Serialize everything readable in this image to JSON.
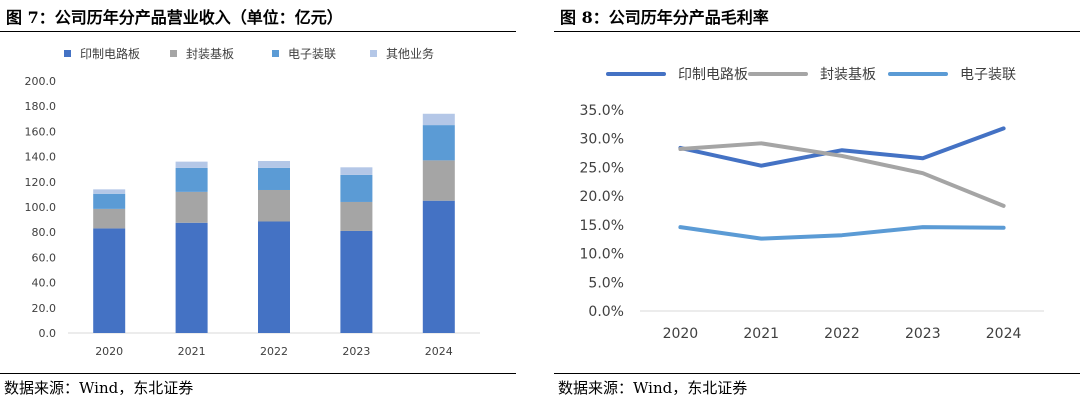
{
  "figures": [
    {
      "title": "图 7：公司历年分产品营业收入（单位：亿元）",
      "source": "数据来源：Wind，东北证券"
    },
    {
      "title": "图 8：公司历年分产品毛利率",
      "source": "数据来源：Wind，东北证券"
    }
  ],
  "chart_data": [
    {
      "type": "bar",
      "stacked": true,
      "title": "",
      "xlabel": "",
      "ylabel": "",
      "categories": [
        "2020",
        "2021",
        "2022",
        "2023",
        "2024"
      ],
      "series": [
        {
          "name": "印制电路板",
          "color": "#4472c4",
          "values": [
            83.0,
            87.5,
            88.5,
            81.0,
            105.0
          ]
        },
        {
          "name": "封装基板",
          "color": "#a5a5a5",
          "values": [
            15.5,
            24.5,
            25.0,
            23.0,
            32.0
          ]
        },
        {
          "name": "电子装联",
          "color": "#5b9bd5",
          "values": [
            12.0,
            19.0,
            17.5,
            21.5,
            28.0
          ]
        },
        {
          "name": "其他业务",
          "color": "#b4c7e7",
          "values": [
            3.5,
            5.0,
            5.5,
            6.0,
            9.0
          ]
        }
      ],
      "ylim": [
        0,
        200
      ],
      "yticks": [
        "0.0",
        "20.0",
        "40.0",
        "60.0",
        "80.0",
        "100.0",
        "120.0",
        "140.0",
        "160.0",
        "180.0",
        "200.0"
      ],
      "grid": false,
      "legend": "top"
    },
    {
      "type": "line",
      "title": "",
      "xlabel": "",
      "ylabel": "",
      "x": [
        "2020",
        "2021",
        "2022",
        "2023",
        "2024"
      ],
      "series": [
        {
          "name": "印制电路板",
          "color": "#4472c4",
          "values": [
            28.4,
            25.3,
            28.0,
            26.6,
            31.8
          ]
        },
        {
          "name": "封装基板",
          "color": "#a5a5a5",
          "values": [
            28.2,
            29.2,
            27.0,
            24.0,
            18.3
          ]
        },
        {
          "name": "电子装联",
          "color": "#5b9bd5",
          "values": [
            14.6,
            12.6,
            13.2,
            14.6,
            14.5
          ]
        }
      ],
      "ylim": [
        0,
        35
      ],
      "yticks": [
        "0.0%",
        "5.0%",
        "10.0%",
        "15.0%",
        "20.0%",
        "25.0%",
        "30.0%",
        "35.0%"
      ],
      "grid": false,
      "legend": "top"
    }
  ]
}
